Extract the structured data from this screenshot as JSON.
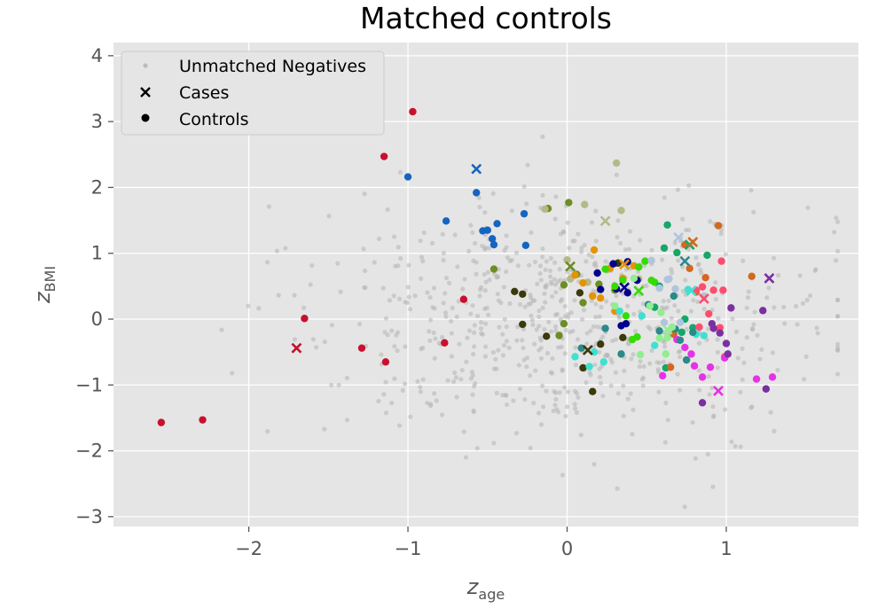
{
  "chart_data": {
    "type": "scatter",
    "title": "Matched controls",
    "xlabel": {
      "base": "z",
      "sub": "age"
    },
    "ylabel": {
      "base": "z",
      "sub": "BMI"
    },
    "xlim": [
      -2.85,
      1.83
    ],
    "ylim": [
      -3.15,
      4.2
    ],
    "xticks": [
      -2,
      -1,
      0,
      1
    ],
    "yticks": [
      -3,
      -2,
      -1,
      0,
      1,
      2,
      3,
      4
    ],
    "xtick_labels": [
      "−2",
      "−1",
      "0",
      "1"
    ],
    "ytick_labels": [
      "−3",
      "−2",
      "−1",
      "0",
      "1",
      "2",
      "3",
      "4"
    ],
    "grid": true,
    "background": "#e5e5e5",
    "legend": {
      "placement": "top-left",
      "entries": [
        {
          "label": "Unmatched Negatives",
          "marker": "dot-small",
          "color": "#bbbbbb"
        },
        {
          "label": "Cases",
          "marker": "x",
          "color": "#000000"
        },
        {
          "label": "Controls",
          "marker": "dot",
          "color": "#000000"
        }
      ]
    },
    "unmatched_seed": 42,
    "unmatched_count": 700,
    "unmatched_color": "#b5b5b5",
    "groups": [
      {
        "color": "#c8102e",
        "case": [
          -1.7,
          -0.44
        ],
        "controls": [
          [
            -2.55,
            -1.57
          ],
          [
            -2.29,
            -1.53
          ],
          [
            -1.65,
            0.01
          ],
          [
            -1.29,
            -0.44
          ],
          [
            -1.15,
            2.47
          ],
          [
            -0.97,
            3.15
          ],
          [
            -1.14,
            -0.65
          ],
          [
            -0.77,
            -0.36
          ],
          [
            -0.65,
            0.3
          ]
        ]
      },
      {
        "color": "#1565c0",
        "case": [
          -0.57,
          2.28
        ],
        "controls": [
          [
            -1.0,
            2.16
          ],
          [
            -0.76,
            1.49
          ],
          [
            -0.57,
            1.92
          ],
          [
            -0.53,
            1.34
          ],
          [
            -0.5,
            1.35
          ],
          [
            -0.47,
            1.22
          ],
          [
            -0.46,
            1.13
          ],
          [
            -0.44,
            1.45
          ],
          [
            -0.27,
            1.6
          ],
          [
            -0.26,
            1.12
          ]
        ]
      },
      {
        "color": "#3a3a0a",
        "case": [
          0.13,
          -0.47
        ],
        "controls": [
          [
            -0.33,
            0.42
          ],
          [
            -0.28,
            0.38
          ],
          [
            -0.28,
            -0.08
          ],
          [
            -0.13,
            -0.26
          ],
          [
            0.08,
            0.4
          ],
          [
            0.1,
            -0.74
          ],
          [
            0.16,
            -1.1
          ],
          [
            0.21,
            -0.38
          ],
          [
            0.35,
            -0.28
          ],
          [
            0.32,
            0.85
          ]
        ]
      },
      {
        "color": "#6b8e23",
        "case": [
          0.02,
          0.8
        ],
        "controls": [
          [
            -0.46,
            0.76
          ],
          [
            -0.12,
            1.68
          ],
          [
            0.01,
            1.77
          ],
          [
            0.06,
            0.68
          ],
          [
            0.1,
            0.25
          ],
          [
            -0.02,
            0.52
          ],
          [
            -0.05,
            -0.25
          ],
          [
            -0.02,
            -0.07
          ],
          [
            0.2,
            0.53
          ],
          [
            0.3,
            0.44
          ]
        ]
      },
      {
        "color": "#b5b98a",
        "case": [
          0.24,
          1.49
        ],
        "controls": [
          [
            -0.14,
            1.67
          ],
          [
            0.11,
            1.74
          ],
          [
            0.31,
            2.37
          ],
          [
            0.34,
            1.65
          ],
          [
            0.0,
            0.9
          ],
          [
            0.02,
            0.61
          ],
          [
            0.13,
            0.56
          ],
          [
            0.25,
            0.75
          ],
          [
            0.45,
            0.61
          ]
        ]
      },
      {
        "color": "#e59400",
        "case": [
          0.36,
          0.83
        ],
        "controls": [
          [
            0.05,
            0.67
          ],
          [
            0.16,
            0.35
          ],
          [
            0.1,
            0.55
          ],
          [
            0.17,
            1.05
          ],
          [
            0.27,
            0.77
          ],
          [
            0.3,
            0.12
          ],
          [
            0.35,
            0.62
          ],
          [
            0.42,
            0.81
          ],
          [
            0.21,
            0.32
          ]
        ]
      },
      {
        "color": "#00008b",
        "case": [
          0.36,
          0.48
        ],
        "controls": [
          [
            0.29,
            0.84
          ],
          [
            0.38,
            0.87
          ],
          [
            0.37,
            -0.07
          ],
          [
            0.31,
            0.46
          ],
          [
            0.38,
            0.4
          ],
          [
            0.34,
            -0.1
          ],
          [
            0.44,
            0.59
          ],
          [
            0.19,
            0.7
          ],
          [
            0.21,
            0.45
          ]
        ]
      },
      {
        "color": "#33dd00",
        "case": [
          0.45,
          0.43
        ],
        "controls": [
          [
            0.24,
            0.76
          ],
          [
            0.3,
            0.5
          ],
          [
            0.35,
            0.59
          ],
          [
            0.45,
            0.79
          ],
          [
            0.49,
            0.88
          ],
          [
            0.53,
            0.59
          ],
          [
            0.41,
            -0.31
          ],
          [
            0.44,
            -0.27
          ],
          [
            0.55,
            0.56
          ],
          [
            0.37,
            0.05
          ]
        ]
      },
      {
        "color": "#17a668",
        "case": [
          0.77,
          1.13
        ],
        "controls": [
          [
            0.55,
            0.18
          ],
          [
            0.58,
            0.5
          ],
          [
            0.61,
            1.08
          ],
          [
            0.63,
            1.43
          ],
          [
            0.69,
            1.01
          ],
          [
            0.74,
            0.0
          ],
          [
            0.79,
            -0.13
          ],
          [
            0.88,
            0.97
          ],
          [
            0.62,
            -0.74
          ],
          [
            0.72,
            -0.2
          ]
        ]
      },
      {
        "color": "#b0c4de",
        "case": [
          0.7,
          1.24
        ],
        "controls": [
          [
            0.53,
            0.89
          ],
          [
            0.58,
            0.47
          ],
          [
            0.64,
            0.61
          ],
          [
            0.68,
            0.46
          ],
          [
            0.61,
            -0.05
          ],
          [
            0.86,
            0.35
          ],
          [
            0.71,
            -0.05
          ],
          [
            0.82,
            -0.2
          ],
          [
            0.63,
            0.6
          ]
        ]
      },
      {
        "color": "#d2691e",
        "case": [
          0.79,
          1.17
        ],
        "controls": [
          [
            0.95,
            1.42
          ],
          [
            0.77,
            0.77
          ],
          [
            0.74,
            1.13
          ],
          [
            1.16,
            0.65
          ],
          [
            0.65,
            -0.73
          ],
          [
            0.75,
            -0.62
          ],
          [
            0.81,
            0.41
          ],
          [
            0.87,
            0.63
          ],
          [
            0.67,
            -0.23
          ]
        ]
      },
      {
        "color": "#ff4d6d",
        "case": [
          0.86,
          0.31
        ],
        "controls": [
          [
            0.89,
            0.08
          ],
          [
            0.92,
            0.44
          ],
          [
            0.98,
            0.44
          ],
          [
            0.96,
            -0.13
          ],
          [
            0.99,
            -0.57
          ],
          [
            0.83,
            -0.12
          ],
          [
            0.85,
            0.49
          ],
          [
            0.81,
            0.44
          ],
          [
            0.97,
            0.88
          ]
        ]
      },
      {
        "color": "#e632e6",
        "case": [
          0.95,
          -1.09
        ],
        "controls": [
          [
            0.78,
            -0.53
          ],
          [
            0.85,
            -0.88
          ],
          [
            0.74,
            -0.43
          ],
          [
            0.9,
            -0.73
          ],
          [
            0.99,
            -0.59
          ],
          [
            1.19,
            -0.91
          ],
          [
            1.29,
            -0.88
          ],
          [
            0.8,
            -0.71
          ],
          [
            0.6,
            -0.86
          ],
          [
            0.69,
            -0.31
          ]
        ]
      },
      {
        "color": "#7b2fa0",
        "case": [
          1.27,
          0.62
        ],
        "controls": [
          [
            1.23,
            0.13
          ],
          [
            1.25,
            -1.06
          ],
          [
            0.85,
            -1.27
          ],
          [
            0.92,
            -0.14
          ],
          [
            1.03,
            0.17
          ],
          [
            0.96,
            -0.21
          ],
          [
            1.01,
            -0.53
          ],
          [
            0.91,
            -0.07
          ],
          [
            1.0,
            -0.37
          ]
        ]
      },
      {
        "color": "#40e0d0",
        "case": [
          0.78,
          0.43
        ],
        "controls": [
          [
            0.05,
            -0.57
          ],
          [
            0.17,
            -0.5
          ],
          [
            0.23,
            -0.65
          ],
          [
            0.33,
            0.12
          ],
          [
            0.47,
            0.05
          ],
          [
            0.55,
            -0.4
          ],
          [
            0.76,
            0.45
          ],
          [
            0.81,
            -0.23
          ],
          [
            0.86,
            -0.25
          ],
          [
            0.14,
            -0.72
          ]
        ]
      },
      {
        "color": "#2a8a8a",
        "case": [
          0.74,
          0.88
        ],
        "controls": [
          [
            0.09,
            -0.44
          ],
          [
            0.24,
            -0.14
          ],
          [
            0.34,
            -0.53
          ],
          [
            0.51,
            0.22
          ],
          [
            0.58,
            -0.18
          ],
          [
            0.67,
            0.35
          ],
          [
            0.68,
            -0.15
          ],
          [
            0.71,
            -0.32
          ],
          [
            0.75,
            -0.62
          ],
          [
            0.79,
            -0.2
          ]
        ]
      },
      {
        "color": "#90ee90",
        "case": [
          0.63,
          -0.16
        ],
        "controls": [
          [
            0.42,
            0.62
          ],
          [
            0.52,
            0.2
          ],
          [
            0.59,
            0.1
          ],
          [
            0.63,
            -0.28
          ],
          [
            0.62,
            -0.53
          ],
          [
            0.66,
            -0.12
          ],
          [
            0.46,
            -0.54
          ],
          [
            0.58,
            -0.29
          ],
          [
            0.3,
            0.2
          ]
        ]
      }
    ]
  }
}
